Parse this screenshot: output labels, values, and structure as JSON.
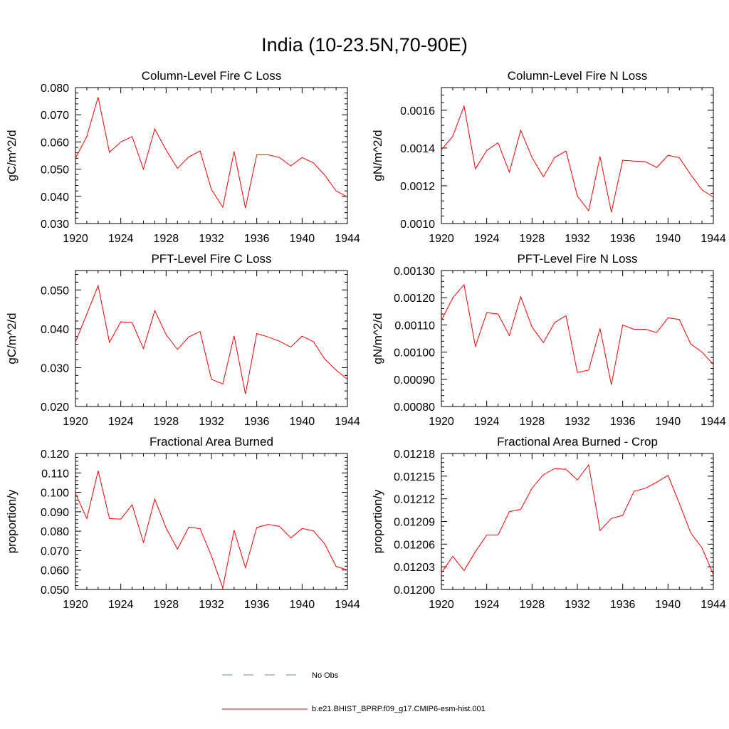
{
  "title": "India (10-23.5N,70-90E)",
  "colors": {
    "model": "#ff0000",
    "obs": "#6f7fc8"
  },
  "legend": {
    "obs_label": "No Obs",
    "model_label": "b.e21.BHIST_BPRP.f09_g17.CMIP6-esm-hist.001"
  },
  "chart_data": [
    {
      "type": "line",
      "title": "Column-Level Fire C Loss",
      "xlabel": "",
      "ylabel": "gC/m^2/d",
      "xlim": [
        1920,
        1944
      ],
      "ylim": [
        0.03,
        0.08
      ],
      "xticks": [
        1920,
        1924,
        1928,
        1932,
        1936,
        1940,
        1944
      ],
      "yticks": [
        0.03,
        0.04,
        0.05,
        0.06,
        0.07,
        0.08
      ],
      "ytick_labels": [
        "0.030",
        "0.040",
        "0.050",
        "0.060",
        "0.070",
        "0.080"
      ],
      "x": [
        1920,
        1921,
        1922,
        1923,
        1924,
        1925,
        1926,
        1927,
        1928,
        1929,
        1930,
        1931,
        1932,
        1933,
        1934,
        1935,
        1936,
        1937,
        1938,
        1939,
        1940,
        1941,
        1942,
        1943,
        1944
      ],
      "values": [
        0.054,
        0.062,
        0.0765,
        0.0562,
        0.06,
        0.062,
        0.05,
        0.0648,
        0.057,
        0.0503,
        0.0545,
        0.0567,
        0.0425,
        0.036,
        0.0565,
        0.0357,
        0.0553,
        0.0553,
        0.0543,
        0.0512,
        0.0543,
        0.0523,
        0.0478,
        0.042,
        0.0398
      ]
    },
    {
      "type": "line",
      "title": "Column-Level Fire N Loss",
      "xlabel": "",
      "ylabel": "gN/m^2/d",
      "xlim": [
        1920,
        1944
      ],
      "ylim": [
        0.001,
        0.00172
      ],
      "xticks": [
        1920,
        1924,
        1928,
        1932,
        1936,
        1940,
        1944
      ],
      "yticks": [
        0.001,
        0.0012,
        0.0014,
        0.0016
      ],
      "ytick_labels": [
        "0.0010",
        "0.0012",
        "0.0014",
        "0.0016"
      ],
      "x": [
        1920,
        1921,
        1922,
        1923,
        1924,
        1925,
        1926,
        1927,
        1928,
        1929,
        1930,
        1931,
        1932,
        1933,
        1934,
        1935,
        1936,
        1937,
        1938,
        1939,
        1940,
        1941,
        1942,
        1943,
        1944
      ],
      "values": [
        0.00139,
        0.001462,
        0.001622,
        0.00129,
        0.001387,
        0.001428,
        0.001272,
        0.001494,
        0.001349,
        0.001248,
        0.00135,
        0.001384,
        0.001145,
        0.001068,
        0.001355,
        0.00106,
        0.001335,
        0.001331,
        0.001328,
        0.001297,
        0.001361,
        0.001349,
        0.001259,
        0.001178,
        0.00114
      ]
    },
    {
      "type": "line",
      "title": "PFT-Level Fire C Loss",
      "xlabel": "",
      "ylabel": "gC/m^2/d",
      "xlim": [
        1920,
        1944
      ],
      "ylim": [
        0.02,
        0.055
      ],
      "xticks": [
        1920,
        1924,
        1928,
        1932,
        1936,
        1940,
        1944
      ],
      "yticks": [
        0.02,
        0.03,
        0.04,
        0.05
      ],
      "ytick_labels": [
        "0.020",
        "0.030",
        "0.040",
        "0.050"
      ],
      "x": [
        1920,
        1921,
        1922,
        1923,
        1924,
        1925,
        1926,
        1927,
        1928,
        1929,
        1930,
        1931,
        1932,
        1933,
        1934,
        1935,
        1936,
        1937,
        1938,
        1939,
        1940,
        1941,
        1942,
        1943,
        1944
      ],
      "values": [
        0.0366,
        0.0438,
        0.0511,
        0.0365,
        0.0418,
        0.0416,
        0.0349,
        0.0447,
        0.0385,
        0.0347,
        0.0379,
        0.0393,
        0.027,
        0.0258,
        0.0382,
        0.0232,
        0.0388,
        0.0379,
        0.0368,
        0.0353,
        0.0381,
        0.0367,
        0.0322,
        0.0294,
        0.027
      ]
    },
    {
      "type": "line",
      "title": "PFT-Level Fire N Loss",
      "xlabel": "",
      "ylabel": "gN/m^2/d",
      "xlim": [
        1920,
        1944
      ],
      "ylim": [
        0.0008,
        0.0013
      ],
      "xticks": [
        1920,
        1924,
        1928,
        1932,
        1936,
        1940,
        1944
      ],
      "yticks": [
        0.0008,
        0.0009,
        0.001,
        0.0011,
        0.0012,
        0.0013
      ],
      "ytick_labels": [
        "0.00080",
        "0.00090",
        "0.00100",
        "0.00110",
        "0.00120",
        "0.00130"
      ],
      "x": [
        1920,
        1921,
        1922,
        1923,
        1924,
        1925,
        1926,
        1927,
        1928,
        1929,
        1930,
        1931,
        1932,
        1933,
        1934,
        1935,
        1936,
        1937,
        1938,
        1939,
        1940,
        1941,
        1942,
        1943,
        1944
      ],
      "values": [
        0.001117,
        0.001199,
        0.001248,
        0.001021,
        0.001145,
        0.00114,
        0.001061,
        0.001204,
        0.001092,
        0.001035,
        0.001109,
        0.001134,
        0.000925,
        0.000934,
        0.001087,
        0.00088,
        0.0011,
        0.001084,
        0.001084,
        0.001072,
        0.001126,
        0.00112,
        0.00103,
        0.001,
        0.000955
      ]
    },
    {
      "type": "line",
      "title": "Fractional Area Burned",
      "xlabel": "",
      "ylabel": "proportion/y",
      "xlim": [
        1920,
        1944
      ],
      "ylim": [
        0.05,
        0.12
      ],
      "xticks": [
        1920,
        1924,
        1928,
        1932,
        1936,
        1940,
        1944
      ],
      "yticks": [
        0.05,
        0.06,
        0.07,
        0.08,
        0.09,
        0.1,
        0.11,
        0.12
      ],
      "ytick_labels": [
        "0.050",
        "0.060",
        "0.070",
        "0.080",
        "0.090",
        "0.100",
        "0.110",
        "0.120"
      ],
      "x": [
        1920,
        1921,
        1922,
        1923,
        1924,
        1925,
        1926,
        1927,
        1928,
        1929,
        1930,
        1931,
        1932,
        1933,
        1934,
        1935,
        1936,
        1937,
        1938,
        1939,
        1940,
        1941,
        1942,
        1943,
        1944
      ],
      "values": [
        0.0995,
        0.0865,
        0.1111,
        0.0865,
        0.0862,
        0.0936,
        0.0742,
        0.0965,
        0.0816,
        0.0708,
        0.0821,
        0.0813,
        0.0672,
        0.0508,
        0.0805,
        0.0612,
        0.0819,
        0.0835,
        0.0825,
        0.0765,
        0.0814,
        0.0802,
        0.0734,
        0.0619,
        0.06
      ]
    },
    {
      "type": "line",
      "title": "Fractional Area Burned - Crop",
      "xlabel": "",
      "ylabel": "proportion/y",
      "xlim": [
        1920,
        1944
      ],
      "ylim": [
        0.012,
        0.01218
      ],
      "xticks": [
        1920,
        1924,
        1928,
        1932,
        1936,
        1940,
        1944
      ],
      "yticks": [
        0.012,
        0.01203,
        0.01206,
        0.01209,
        0.01212,
        0.01215,
        0.01218
      ],
      "ytick_labels": [
        "0.01200",
        "0.01203",
        "0.01206",
        "0.01209",
        "0.01212",
        "0.01215",
        "0.01218"
      ],
      "x": [
        1920,
        1921,
        1922,
        1923,
        1924,
        1925,
        1926,
        1927,
        1928,
        1929,
        1930,
        1931,
        1932,
        1933,
        1934,
        1935,
        1936,
        1937,
        1938,
        1939,
        1940,
        1941,
        1942,
        1943,
        1944
      ],
      "values": [
        0.012022,
        0.012044,
        0.012025,
        0.01205,
        0.012072,
        0.012072,
        0.012103,
        0.012106,
        0.012134,
        0.012152,
        0.01216,
        0.012159,
        0.012145,
        0.012165,
        0.012078,
        0.012094,
        0.012098,
        0.01213,
        0.012134,
        0.012142,
        0.012151,
        0.012114,
        0.012075,
        0.012055,
        0.01202
      ]
    }
  ]
}
